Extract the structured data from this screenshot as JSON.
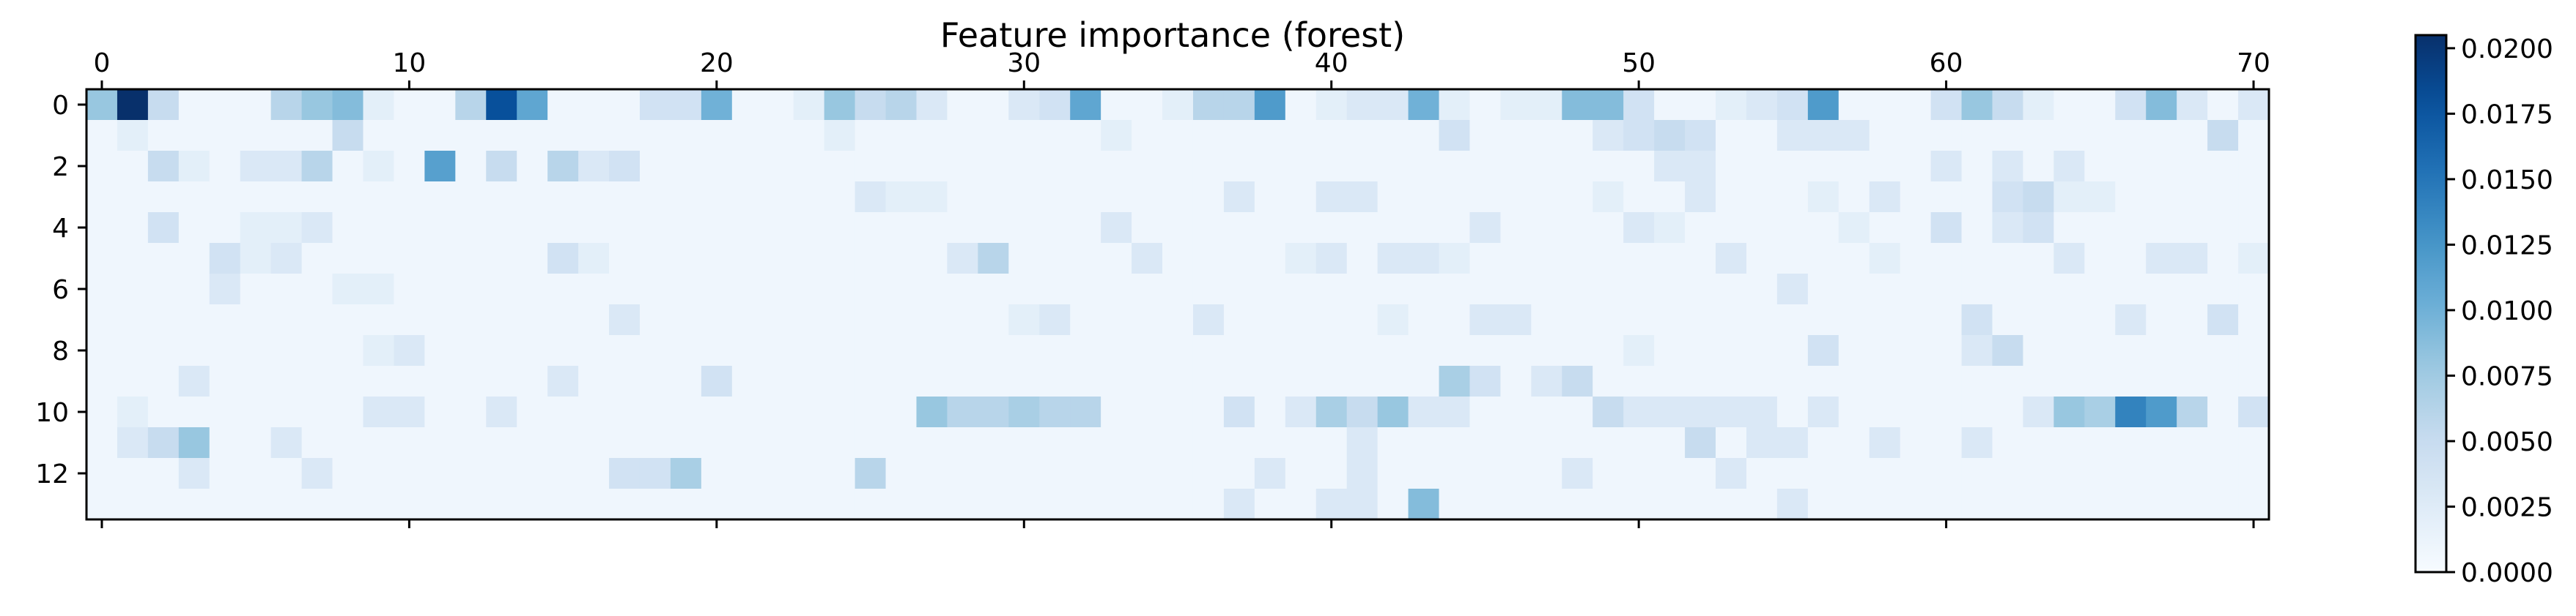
{
  "chart_data": {
    "type": "heatmap",
    "title": "Feature importance (forest)",
    "xlabel": "",
    "ylabel": "",
    "colormap": "Blues",
    "grid": false,
    "x_range": [
      0,
      70
    ],
    "y_range": [
      0,
      13
    ],
    "x_ticks": [
      0,
      10,
      20,
      30,
      40,
      50,
      60,
      70
    ],
    "y_ticks": [
      0,
      2,
      4,
      6,
      8,
      10,
      12
    ],
    "x_tick_labels": [
      "0",
      "10",
      "20",
      "30",
      "40",
      "50",
      "60",
      "70"
    ],
    "y_tick_labels": [
      "0",
      "2",
      "4",
      "6",
      "8",
      "10",
      "12"
    ],
    "colorbar": {
      "min": 0.0,
      "max": 0.0205,
      "ticks": [
        0.0,
        0.0025,
        0.005,
        0.0075,
        0.01,
        0.0125,
        0.015,
        0.0175,
        0.02
      ],
      "tick_labels": [
        "0.0000",
        "0.0025",
        "0.0050",
        "0.0075",
        "0.0100",
        "0.0125",
        "0.0150",
        "0.0175",
        "0.0200"
      ]
    },
    "n_rows": 14,
    "n_cols": 71,
    "default_value": 0.0008,
    "values": [
      {
        "row": 0,
        "col": 0,
        "v": 0.008
      },
      {
        "row": 0,
        "col": 1,
        "v": 0.0205
      },
      {
        "row": 0,
        "col": 2,
        "v": 0.005
      },
      {
        "row": 0,
        "col": 6,
        "v": 0.006
      },
      {
        "row": 0,
        "col": 7,
        "v": 0.008
      },
      {
        "row": 0,
        "col": 8,
        "v": 0.009
      },
      {
        "row": 0,
        "col": 9,
        "v": 0.002
      },
      {
        "row": 0,
        "col": 12,
        "v": 0.006
      },
      {
        "row": 0,
        "col": 13,
        "v": 0.018
      },
      {
        "row": 0,
        "col": 14,
        "v": 0.011
      },
      {
        "row": 0,
        "col": 18,
        "v": 0.004
      },
      {
        "row": 0,
        "col": 19,
        "v": 0.004
      },
      {
        "row": 0,
        "col": 20,
        "v": 0.01
      },
      {
        "row": 0,
        "col": 23,
        "v": 0.002
      },
      {
        "row": 0,
        "col": 24,
        "v": 0.008
      },
      {
        "row": 0,
        "col": 25,
        "v": 0.005
      },
      {
        "row": 0,
        "col": 26,
        "v": 0.006
      },
      {
        "row": 0,
        "col": 27,
        "v": 0.003
      },
      {
        "row": 0,
        "col": 30,
        "v": 0.003
      },
      {
        "row": 0,
        "col": 31,
        "v": 0.004
      },
      {
        "row": 0,
        "col": 32,
        "v": 0.011
      },
      {
        "row": 0,
        "col": 35,
        "v": 0.002
      },
      {
        "row": 0,
        "col": 36,
        "v": 0.006
      },
      {
        "row": 0,
        "col": 37,
        "v": 0.006
      },
      {
        "row": 0,
        "col": 38,
        "v": 0.012
      },
      {
        "row": 0,
        "col": 40,
        "v": 0.002
      },
      {
        "row": 0,
        "col": 41,
        "v": 0.003
      },
      {
        "row": 0,
        "col": 42,
        "v": 0.003
      },
      {
        "row": 0,
        "col": 43,
        "v": 0.01
      },
      {
        "row": 0,
        "col": 44,
        "v": 0.002
      },
      {
        "row": 0,
        "col": 46,
        "v": 0.002
      },
      {
        "row": 0,
        "col": 47,
        "v": 0.002
      },
      {
        "row": 0,
        "col": 48,
        "v": 0.009
      },
      {
        "row": 0,
        "col": 49,
        "v": 0.009
      },
      {
        "row": 0,
        "col": 50,
        "v": 0.004
      },
      {
        "row": 0,
        "col": 53,
        "v": 0.002
      },
      {
        "row": 0,
        "col": 54,
        "v": 0.003
      },
      {
        "row": 0,
        "col": 55,
        "v": 0.004
      },
      {
        "row": 0,
        "col": 56,
        "v": 0.012
      },
      {
        "row": 0,
        "col": 60,
        "v": 0.004
      },
      {
        "row": 0,
        "col": 61,
        "v": 0.008
      },
      {
        "row": 0,
        "col": 62,
        "v": 0.005
      },
      {
        "row": 0,
        "col": 63,
        "v": 0.002
      },
      {
        "row": 0,
        "col": 66,
        "v": 0.004
      },
      {
        "row": 0,
        "col": 67,
        "v": 0.009
      },
      {
        "row": 0,
        "col": 68,
        "v": 0.003
      },
      {
        "row": 0,
        "col": 70,
        "v": 0.003
      },
      {
        "row": 1,
        "col": 1,
        "v": 0.002
      },
      {
        "row": 1,
        "col": 8,
        "v": 0.005
      },
      {
        "row": 1,
        "col": 24,
        "v": 0.002
      },
      {
        "row": 1,
        "col": 33,
        "v": 0.002
      },
      {
        "row": 1,
        "col": 44,
        "v": 0.004
      },
      {
        "row": 1,
        "col": 49,
        "v": 0.003
      },
      {
        "row": 1,
        "col": 50,
        "v": 0.004
      },
      {
        "row": 1,
        "col": 51,
        "v": 0.005
      },
      {
        "row": 1,
        "col": 52,
        "v": 0.004
      },
      {
        "row": 1,
        "col": 55,
        "v": 0.003
      },
      {
        "row": 1,
        "col": 56,
        "v": 0.003
      },
      {
        "row": 1,
        "col": 57,
        "v": 0.003
      },
      {
        "row": 1,
        "col": 69,
        "v": 0.005
      },
      {
        "row": 2,
        "col": 2,
        "v": 0.005
      },
      {
        "row": 2,
        "col": 3,
        "v": 0.002
      },
      {
        "row": 2,
        "col": 5,
        "v": 0.003
      },
      {
        "row": 2,
        "col": 6,
        "v": 0.003
      },
      {
        "row": 2,
        "col": 7,
        "v": 0.006
      },
      {
        "row": 2,
        "col": 9,
        "v": 0.002
      },
      {
        "row": 2,
        "col": 11,
        "v": 0.0115
      },
      {
        "row": 2,
        "col": 13,
        "v": 0.005
      },
      {
        "row": 2,
        "col": 15,
        "v": 0.006
      },
      {
        "row": 2,
        "col": 16,
        "v": 0.003
      },
      {
        "row": 2,
        "col": 17,
        "v": 0.004
      },
      {
        "row": 2,
        "col": 51,
        "v": 0.003
      },
      {
        "row": 2,
        "col": 52,
        "v": 0.003
      },
      {
        "row": 2,
        "col": 60,
        "v": 0.003
      },
      {
        "row": 2,
        "col": 62,
        "v": 0.003
      },
      {
        "row": 2,
        "col": 64,
        "v": 0.003
      },
      {
        "row": 3,
        "col": 25,
        "v": 0.003
      },
      {
        "row": 3,
        "col": 26,
        "v": 0.002
      },
      {
        "row": 3,
        "col": 27,
        "v": 0.002
      },
      {
        "row": 3,
        "col": 37,
        "v": 0.003
      },
      {
        "row": 3,
        "col": 40,
        "v": 0.003
      },
      {
        "row": 3,
        "col": 41,
        "v": 0.003
      },
      {
        "row": 3,
        "col": 49,
        "v": 0.002
      },
      {
        "row": 3,
        "col": 52,
        "v": 0.003
      },
      {
        "row": 3,
        "col": 56,
        "v": 0.002
      },
      {
        "row": 3,
        "col": 58,
        "v": 0.003
      },
      {
        "row": 3,
        "col": 62,
        "v": 0.004
      },
      {
        "row": 3,
        "col": 63,
        "v": 0.005
      },
      {
        "row": 3,
        "col": 64,
        "v": 0.002
      },
      {
        "row": 3,
        "col": 65,
        "v": 0.002
      },
      {
        "row": 4,
        "col": 2,
        "v": 0.004
      },
      {
        "row": 4,
        "col": 5,
        "v": 0.002
      },
      {
        "row": 4,
        "col": 6,
        "v": 0.002
      },
      {
        "row": 4,
        "col": 7,
        "v": 0.003
      },
      {
        "row": 4,
        "col": 33,
        "v": 0.003
      },
      {
        "row": 4,
        "col": 45,
        "v": 0.003
      },
      {
        "row": 4,
        "col": 50,
        "v": 0.003
      },
      {
        "row": 4,
        "col": 51,
        "v": 0.002
      },
      {
        "row": 4,
        "col": 57,
        "v": 0.002
      },
      {
        "row": 4,
        "col": 60,
        "v": 0.004
      },
      {
        "row": 4,
        "col": 62,
        "v": 0.003
      },
      {
        "row": 4,
        "col": 63,
        "v": 0.004
      },
      {
        "row": 5,
        "col": 4,
        "v": 0.004
      },
      {
        "row": 5,
        "col": 5,
        "v": 0.002
      },
      {
        "row": 5,
        "col": 6,
        "v": 0.003
      },
      {
        "row": 5,
        "col": 15,
        "v": 0.004
      },
      {
        "row": 5,
        "col": 16,
        "v": 0.002
      },
      {
        "row": 5,
        "col": 28,
        "v": 0.003
      },
      {
        "row": 5,
        "col": 29,
        "v": 0.006
      },
      {
        "row": 5,
        "col": 34,
        "v": 0.003
      },
      {
        "row": 5,
        "col": 39,
        "v": 0.002
      },
      {
        "row": 5,
        "col": 40,
        "v": 0.003
      },
      {
        "row": 5,
        "col": 42,
        "v": 0.003
      },
      {
        "row": 5,
        "col": 43,
        "v": 0.003
      },
      {
        "row": 5,
        "col": 44,
        "v": 0.002
      },
      {
        "row": 5,
        "col": 53,
        "v": 0.003
      },
      {
        "row": 5,
        "col": 58,
        "v": 0.002
      },
      {
        "row": 5,
        "col": 64,
        "v": 0.003
      },
      {
        "row": 5,
        "col": 67,
        "v": 0.003
      },
      {
        "row": 5,
        "col": 68,
        "v": 0.003
      },
      {
        "row": 5,
        "col": 70,
        "v": 0.002
      },
      {
        "row": 6,
        "col": 4,
        "v": 0.003
      },
      {
        "row": 6,
        "col": 8,
        "v": 0.002
      },
      {
        "row": 6,
        "col": 9,
        "v": 0.002
      },
      {
        "row": 6,
        "col": 55,
        "v": 0.003
      },
      {
        "row": 7,
        "col": 17,
        "v": 0.003
      },
      {
        "row": 7,
        "col": 30,
        "v": 0.002
      },
      {
        "row": 7,
        "col": 31,
        "v": 0.003
      },
      {
        "row": 7,
        "col": 36,
        "v": 0.003
      },
      {
        "row": 7,
        "col": 42,
        "v": 0.002
      },
      {
        "row": 7,
        "col": 45,
        "v": 0.003
      },
      {
        "row": 7,
        "col": 46,
        "v": 0.003
      },
      {
        "row": 7,
        "col": 61,
        "v": 0.004
      },
      {
        "row": 7,
        "col": 66,
        "v": 0.003
      },
      {
        "row": 7,
        "col": 69,
        "v": 0.004
      },
      {
        "row": 8,
        "col": 9,
        "v": 0.002
      },
      {
        "row": 8,
        "col": 10,
        "v": 0.003
      },
      {
        "row": 8,
        "col": 50,
        "v": 0.002
      },
      {
        "row": 8,
        "col": 56,
        "v": 0.004
      },
      {
        "row": 8,
        "col": 61,
        "v": 0.003
      },
      {
        "row": 8,
        "col": 62,
        "v": 0.005
      },
      {
        "row": 9,
        "col": 3,
        "v": 0.003
      },
      {
        "row": 9,
        "col": 15,
        "v": 0.003
      },
      {
        "row": 9,
        "col": 20,
        "v": 0.004
      },
      {
        "row": 9,
        "col": 44,
        "v": 0.007
      },
      {
        "row": 9,
        "col": 45,
        "v": 0.004
      },
      {
        "row": 9,
        "col": 47,
        "v": 0.003
      },
      {
        "row": 9,
        "col": 48,
        "v": 0.005
      },
      {
        "row": 10,
        "col": 1,
        "v": 0.002
      },
      {
        "row": 10,
        "col": 9,
        "v": 0.003
      },
      {
        "row": 10,
        "col": 10,
        "v": 0.003
      },
      {
        "row": 10,
        "col": 13,
        "v": 0.003
      },
      {
        "row": 10,
        "col": 27,
        "v": 0.008
      },
      {
        "row": 10,
        "col": 28,
        "v": 0.006
      },
      {
        "row": 10,
        "col": 29,
        "v": 0.006
      },
      {
        "row": 10,
        "col": 30,
        "v": 0.007
      },
      {
        "row": 10,
        "col": 31,
        "v": 0.006
      },
      {
        "row": 10,
        "col": 32,
        "v": 0.006
      },
      {
        "row": 10,
        "col": 37,
        "v": 0.004
      },
      {
        "row": 10,
        "col": 39,
        "v": 0.003
      },
      {
        "row": 10,
        "col": 40,
        "v": 0.007
      },
      {
        "row": 10,
        "col": 41,
        "v": 0.005
      },
      {
        "row": 10,
        "col": 42,
        "v": 0.008
      },
      {
        "row": 10,
        "col": 43,
        "v": 0.003
      },
      {
        "row": 10,
        "col": 44,
        "v": 0.003
      },
      {
        "row": 10,
        "col": 49,
        "v": 0.005
      },
      {
        "row": 10,
        "col": 50,
        "v": 0.003
      },
      {
        "row": 10,
        "col": 51,
        "v": 0.003
      },
      {
        "row": 10,
        "col": 52,
        "v": 0.003
      },
      {
        "row": 10,
        "col": 53,
        "v": 0.003
      },
      {
        "row": 10,
        "col": 54,
        "v": 0.003
      },
      {
        "row": 10,
        "col": 56,
        "v": 0.003
      },
      {
        "row": 10,
        "col": 63,
        "v": 0.003
      },
      {
        "row": 10,
        "col": 64,
        "v": 0.008
      },
      {
        "row": 10,
        "col": 65,
        "v": 0.007
      },
      {
        "row": 10,
        "col": 66,
        "v": 0.014
      },
      {
        "row": 10,
        "col": 67,
        "v": 0.012
      },
      {
        "row": 10,
        "col": 68,
        "v": 0.006
      },
      {
        "row": 10,
        "col": 70,
        "v": 0.004
      },
      {
        "row": 11,
        "col": 1,
        "v": 0.003
      },
      {
        "row": 11,
        "col": 2,
        "v": 0.005
      },
      {
        "row": 11,
        "col": 3,
        "v": 0.008
      },
      {
        "row": 11,
        "col": 6,
        "v": 0.003
      },
      {
        "row": 11,
        "col": 41,
        "v": 0.003
      },
      {
        "row": 11,
        "col": 52,
        "v": 0.005
      },
      {
        "row": 11,
        "col": 54,
        "v": 0.003
      },
      {
        "row": 11,
        "col": 55,
        "v": 0.003
      },
      {
        "row": 11,
        "col": 58,
        "v": 0.003
      },
      {
        "row": 11,
        "col": 61,
        "v": 0.003
      },
      {
        "row": 12,
        "col": 3,
        "v": 0.003
      },
      {
        "row": 12,
        "col": 7,
        "v": 0.003
      },
      {
        "row": 12,
        "col": 17,
        "v": 0.004
      },
      {
        "row": 12,
        "col": 18,
        "v": 0.004
      },
      {
        "row": 12,
        "col": 19,
        "v": 0.007
      },
      {
        "row": 12,
        "col": 25,
        "v": 0.006
      },
      {
        "row": 12,
        "col": 38,
        "v": 0.003
      },
      {
        "row": 12,
        "col": 41,
        "v": 0.003
      },
      {
        "row": 12,
        "col": 48,
        "v": 0.003
      },
      {
        "row": 12,
        "col": 53,
        "v": 0.003
      },
      {
        "row": 13,
        "col": 37,
        "v": 0.003
      },
      {
        "row": 13,
        "col": 40,
        "v": 0.003
      },
      {
        "row": 13,
        "col": 41,
        "v": 0.003
      },
      {
        "row": 13,
        "col": 43,
        "v": 0.009
      },
      {
        "row": 13,
        "col": 55,
        "v": 0.003
      }
    ]
  }
}
